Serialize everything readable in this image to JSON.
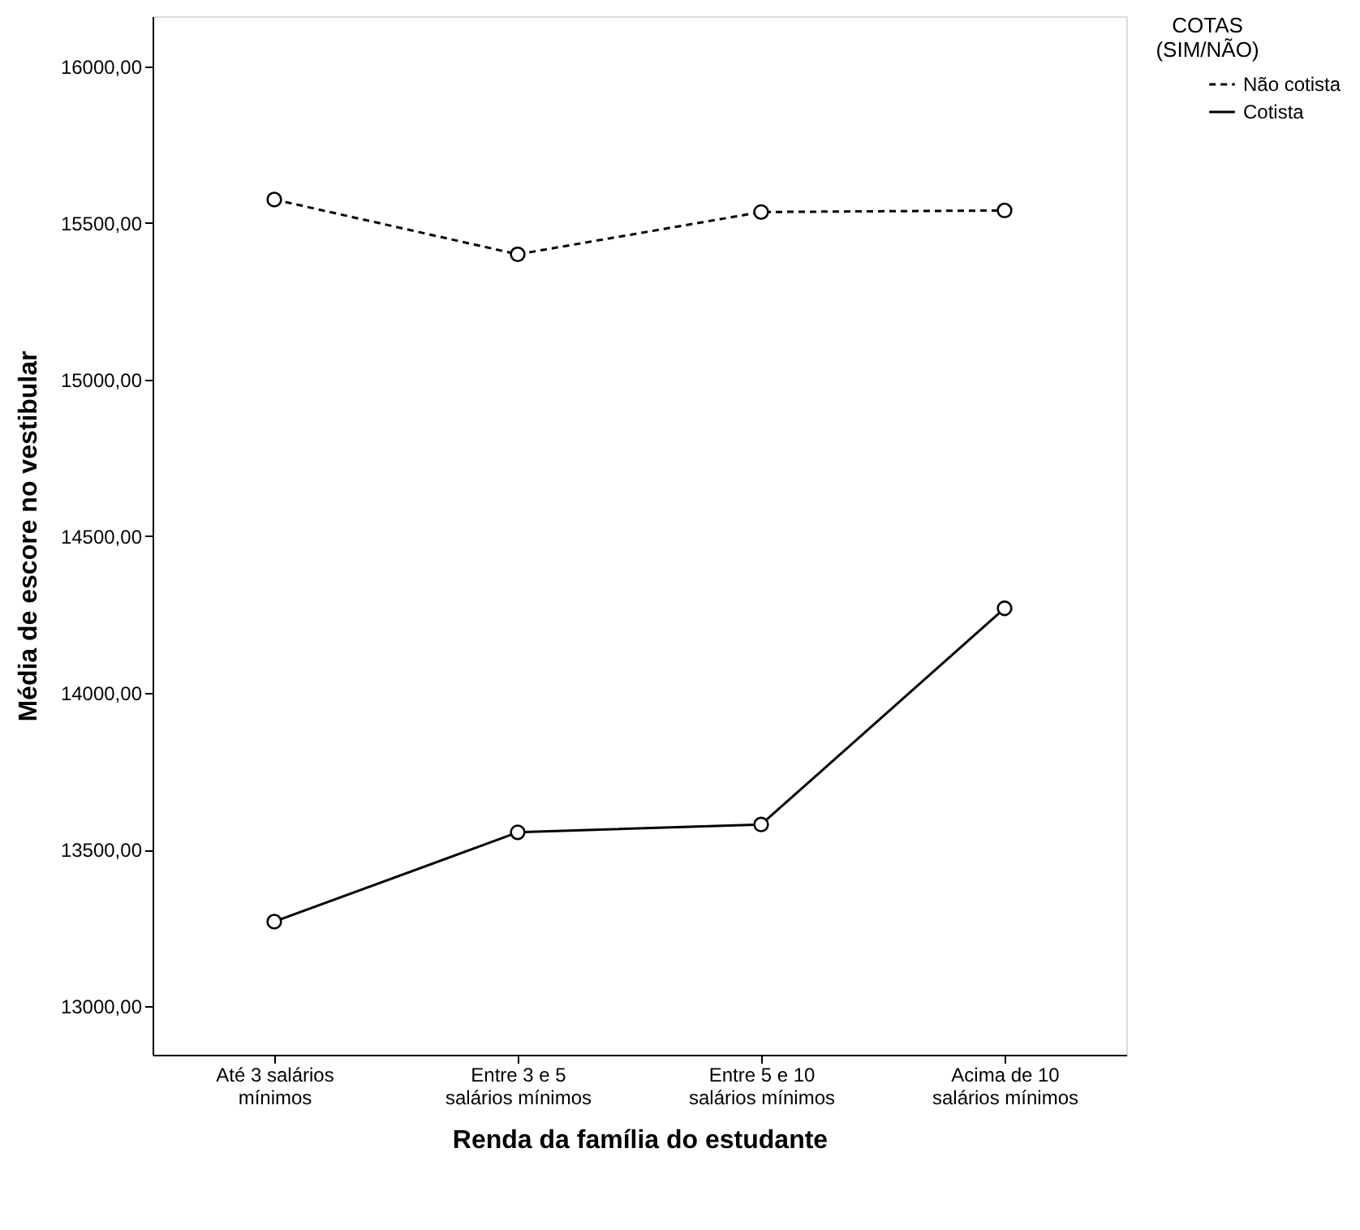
{
  "chart_data": {
    "type": "line",
    "xlabel": "Renda da família do estudante",
    "ylabel": "Média de escore no vestibular",
    "legend_title": "COTAS\n(SIM/NÃO)",
    "categories": [
      "Até 3 salários\nmínimos",
      "Entre 3 e 5\nsalários mínimos",
      "Entre 5 e 10\nsalários mínimos",
      "Acima de 10\nsalários mínimos"
    ],
    "series": [
      {
        "name": "Não cotista",
        "color": "#000000",
        "line_style": "dashed",
        "values": [
          15575,
          15400,
          15535,
          15540
        ]
      },
      {
        "name": "Cotista",
        "color": "#000000",
        "line_style": "solid",
        "values": [
          13270,
          13555,
          13580,
          14270
        ]
      }
    ],
    "ylim": [
      12845,
      16160
    ],
    "yticks": [
      {
        "value": 13000,
        "label": "13000,00"
      },
      {
        "value": 13500,
        "label": "13500,00"
      },
      {
        "value": 14000,
        "label": "14000,00"
      },
      {
        "value": 14500,
        "label": "14500,00"
      },
      {
        "value": 15000,
        "label": "15000,00"
      },
      {
        "value": 15500,
        "label": "15500,00"
      },
      {
        "value": 16000,
        "label": "16000,00"
      }
    ],
    "marker": "circle",
    "grid": false,
    "legend": "top right"
  }
}
